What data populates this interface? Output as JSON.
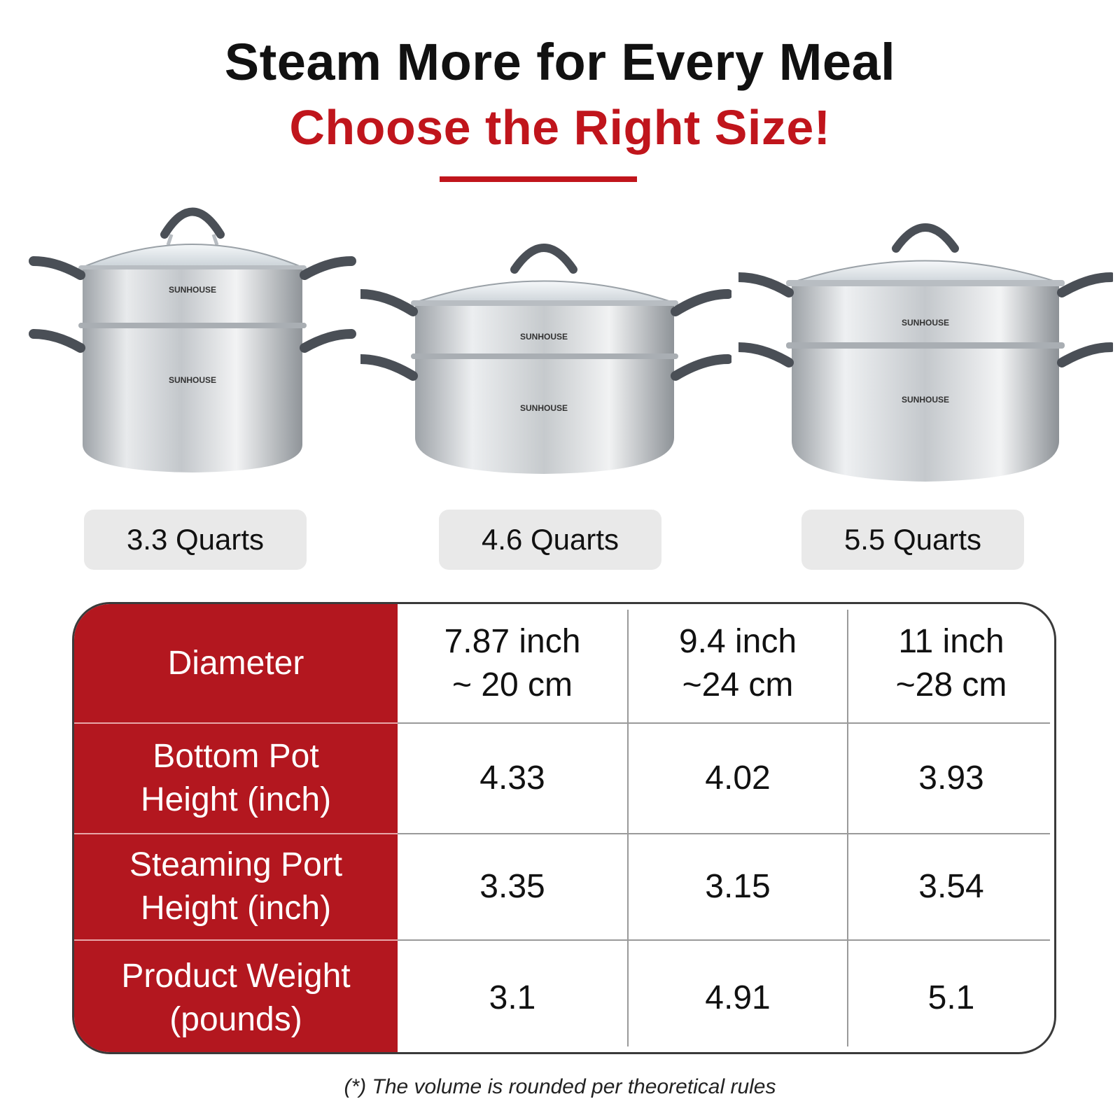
{
  "headline": {
    "line1": "Steam More for Every Meal",
    "line2": "Choose the Right Size!"
  },
  "colors": {
    "accent_red": "#c0151c",
    "table_header_red": "#b3171f",
    "pill_gray": "#e9e9e9"
  },
  "products": [
    {
      "brand": "SUNHOUSE",
      "size_label": "3.3 Quarts"
    },
    {
      "brand": "SUNHOUSE",
      "size_label": "4.6 Quarts"
    },
    {
      "brand": "SUNHOUSE",
      "size_label": "5.5 Quarts"
    }
  ],
  "table": {
    "rows": [
      {
        "label_lines": [
          "Diameter"
        ],
        "values": [
          [
            "7.87 inch",
            "~ 20 cm"
          ],
          [
            "9.4 inch",
            "~24 cm"
          ],
          [
            "11 inch",
            "~28 cm"
          ]
        ]
      },
      {
        "label_lines": [
          "Bottom Pot",
          "Height (inch)"
        ],
        "values": [
          [
            "4.33"
          ],
          [
            "4.02"
          ],
          [
            "3.93"
          ]
        ]
      },
      {
        "label_lines": [
          "Steaming Port",
          "Height (inch)"
        ],
        "values": [
          [
            "3.35"
          ],
          [
            "3.15"
          ],
          [
            "3.54"
          ]
        ]
      },
      {
        "label_lines": [
          "Product Weight",
          "(pounds)"
        ],
        "values": [
          [
            "3.1"
          ],
          [
            "4.91"
          ],
          [
            "5.1"
          ]
        ]
      }
    ]
  },
  "footnote": "(*) The volume is rounded per theoretical rules"
}
